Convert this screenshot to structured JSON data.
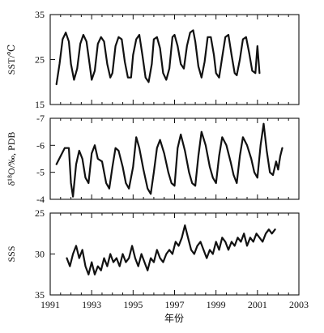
{
  "chart_data": [
    {
      "type": "line",
      "ylabel": "SST/℃",
      "ylim": [
        15,
        35
      ],
      "y_ticks": [
        "35",
        "25",
        "15"
      ],
      "y_tick_values": [
        35,
        25,
        15
      ],
      "xlim": [
        1991,
        2003
      ],
      "series": [
        {
          "x": [
            1991.3,
            1991.45,
            1991.6,
            1991.75,
            1991.9,
            1992.0,
            1992.15,
            1992.3,
            1992.45,
            1992.6,
            1992.75,
            1992.9,
            1993.0,
            1993.15,
            1993.3,
            1993.45,
            1993.6,
            1993.75,
            1993.9,
            1994.0,
            1994.15,
            1994.3,
            1994.45,
            1994.6,
            1994.75,
            1994.9,
            1995.0,
            1995.15,
            1995.3,
            1995.45,
            1995.6,
            1995.75,
            1995.9,
            1996.0,
            1996.15,
            1996.3,
            1996.45,
            1996.6,
            1996.75,
            1996.9,
            1997.0,
            1997.15,
            1997.3,
            1997.45,
            1997.6,
            1997.75,
            1997.9,
            1998.0,
            1998.15,
            1998.3,
            1998.45,
            1998.6,
            1998.75,
            1998.9,
            1999.0,
            1999.15,
            1999.3,
            1999.45,
            1999.6,
            1999.75,
            1999.9,
            2000.0,
            2000.15,
            2000.3,
            2000.45,
            2000.6,
            2000.75,
            2000.9,
            2001.0,
            2001.1
          ],
          "values": [
            19.5,
            24,
            29.5,
            31,
            29,
            24,
            20.5,
            23,
            28.5,
            30.5,
            29,
            24,
            20.5,
            22.5,
            28.5,
            30,
            29,
            24,
            21,
            22,
            28,
            30,
            29.5,
            24.5,
            21,
            21,
            26,
            29.5,
            30.5,
            26,
            21,
            20,
            24,
            29.5,
            30,
            27.5,
            22,
            20.5,
            23,
            30,
            30.5,
            28,
            24,
            23,
            28,
            31,
            31.5,
            29,
            23.5,
            21,
            24.5,
            30,
            30,
            26,
            22,
            21,
            25.5,
            30,
            30.5,
            26,
            22,
            21.5,
            25,
            29.5,
            30,
            26.5,
            22.5,
            22,
            28,
            22
          ]
        }
      ]
    },
    {
      "type": "line",
      "ylabel": "δ¹⁸O/‰, PDB",
      "ylim": [
        -4,
        -7
      ],
      "y_ticks": [
        "-7",
        "-6",
        "-5",
        "-4"
      ],
      "y_tick_values": [
        -7,
        -6,
        -5,
        -4
      ],
      "xlim": [
        1991,
        2003
      ],
      "series": [
        {
          "x": [
            1991.3,
            1991.5,
            1991.7,
            1991.9,
            1992.0,
            1992.1,
            1992.25,
            1992.4,
            1992.55,
            1992.7,
            1992.85,
            1993.0,
            1993.15,
            1993.3,
            1993.5,
            1993.7,
            1993.85,
            1994.0,
            1994.15,
            1994.3,
            1994.5,
            1994.65,
            1994.8,
            1995.0,
            1995.15,
            1995.3,
            1995.5,
            1995.7,
            1995.85,
            1996.0,
            1996.15,
            1996.3,
            1996.5,
            1996.7,
            1996.85,
            1997.0,
            1997.15,
            1997.3,
            1997.5,
            1997.7,
            1997.85,
            1998.0,
            1998.15,
            1998.3,
            1998.5,
            1998.7,
            1998.85,
            1999.0,
            1999.15,
            1999.3,
            1999.5,
            1999.7,
            1999.85,
            2000.0,
            2000.15,
            2000.3,
            2000.5,
            2000.7,
            2000.85,
            2001.0,
            2001.15,
            2001.3,
            2001.45,
            2001.6,
            2001.75,
            2001.9,
            2002.0,
            2002.1,
            2002.2
          ],
          "values": [
            -5.3,
            -5.6,
            -5.9,
            -5.9,
            -4.6,
            -4.1,
            -5.3,
            -5.8,
            -5.5,
            -4.8,
            -4.6,
            -5.7,
            -6.0,
            -5.5,
            -5.4,
            -4.6,
            -4.4,
            -5.2,
            -5.9,
            -5.8,
            -5.2,
            -4.6,
            -4.4,
            -5.2,
            -6.3,
            -5.9,
            -5.1,
            -4.4,
            -4.2,
            -5.0,
            -5.9,
            -6.2,
            -5.7,
            -5.0,
            -4.6,
            -4.5,
            -5.9,
            -6.4,
            -5.8,
            -5.0,
            -4.6,
            -4.5,
            -5.6,
            -6.5,
            -6.0,
            -5.2,
            -4.8,
            -4.6,
            -5.6,
            -6.3,
            -6.0,
            -5.4,
            -4.9,
            -4.6,
            -5.6,
            -6.3,
            -6.0,
            -5.5,
            -5.0,
            -4.8,
            -6.0,
            -6.8,
            -5.8,
            -5.0,
            -4.9,
            -5.4,
            -5.1,
            -5.6,
            -5.9
          ]
        }
      ]
    },
    {
      "type": "line",
      "ylabel": "SSS",
      "ylim": [
        35,
        25
      ],
      "y_ticks": [
        "25",
        "30",
        "35"
      ],
      "y_tick_values": [
        25,
        30,
        35
      ],
      "xlim": [
        1991,
        2003
      ],
      "x_ticks": [
        "1991",
        "1993",
        "1995",
        "1997",
        "1999",
        "2001",
        "2003"
      ],
      "x_tick_values": [
        1991,
        1993,
        1995,
        1997,
        1999,
        2001,
        2003
      ],
      "xlabel": "年份",
      "series": [
        {
          "x": [
            1991.8,
            1991.95,
            1992.1,
            1992.25,
            1992.4,
            1992.55,
            1992.7,
            1992.85,
            1993.0,
            1993.15,
            1993.3,
            1993.45,
            1993.6,
            1993.75,
            1993.9,
            1994.05,
            1994.2,
            1994.35,
            1994.5,
            1994.65,
            1994.8,
            1994.95,
            1995.1,
            1995.25,
            1995.4,
            1995.55,
            1995.7,
            1995.85,
            1996.0,
            1996.15,
            1996.3,
            1996.45,
            1996.6,
            1996.75,
            1996.9,
            1997.05,
            1997.2,
            1997.35,
            1997.5,
            1997.65,
            1997.8,
            1997.95,
            1998.1,
            1998.25,
            1998.4,
            1998.55,
            1998.7,
            1998.85,
            1999.0,
            1999.15,
            1999.3,
            1999.45,
            1999.6,
            1999.75,
            1999.9,
            2000.05,
            2000.2,
            2000.35,
            2000.5,
            2000.65,
            2000.8,
            2000.95,
            2001.1,
            2001.25,
            2001.4,
            2001.55,
            2001.7,
            2001.85
          ],
          "values": [
            30.5,
            31.5,
            30.0,
            29.0,
            30.5,
            29.5,
            31.5,
            32.5,
            31.0,
            32.5,
            31.5,
            32.0,
            30.5,
            31.5,
            30.0,
            31.0,
            30.5,
            31.5,
            30.0,
            31.0,
            30.5,
            29.0,
            30.5,
            31.5,
            30.0,
            31.0,
            32.0,
            30.5,
            31.0,
            29.5,
            30.5,
            31.0,
            30.0,
            29.5,
            30.0,
            28.5,
            29.0,
            28.0,
            26.5,
            28.0,
            29.5,
            30.0,
            29.0,
            28.5,
            29.5,
            30.5,
            29.5,
            30.0,
            28.5,
            29.5,
            28.0,
            28.5,
            29.5,
            28.5,
            29.0,
            28.0,
            28.5,
            27.5,
            29.0,
            28.0,
            28.5,
            27.5,
            28.0,
            28.5,
            27.5,
            27.0,
            27.5,
            27.0
          ]
        }
      ]
    }
  ]
}
